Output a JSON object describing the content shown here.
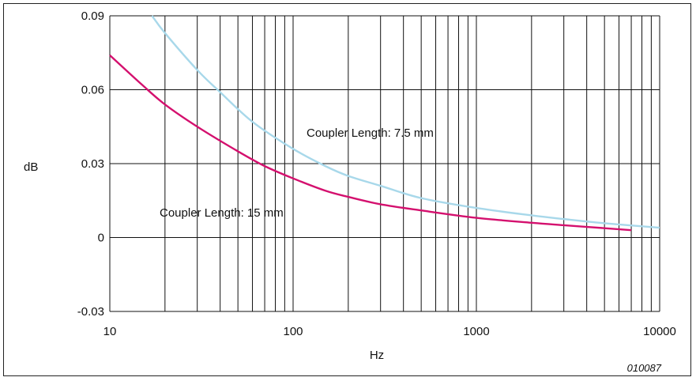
{
  "chart_data": {
    "type": "line",
    "title": "",
    "xlabel": "Hz",
    "ylabel": "dB",
    "xscale": "log",
    "xlim": [
      10,
      10000
    ],
    "ylim": [
      -0.03,
      0.09
    ],
    "xticks": [
      10,
      100,
      1000,
      10000
    ],
    "xtick_labels": [
      "10",
      "100",
      "1000",
      "10000"
    ],
    "yticks": [
      0.09,
      0.06,
      0.03,
      0,
      -0.03
    ],
    "ytick_labels": [
      "0.09",
      "0.06",
      "0.03",
      "0",
      "-0.03"
    ],
    "grid": true,
    "series": [
      {
        "name": "Coupler Length: 7.5 mm",
        "color": "#a8d8ea",
        "x": [
          17,
          20,
          30,
          40,
          60,
          100,
          150,
          200,
          300,
          500,
          1000,
          2000,
          3000,
          5000,
          10000
        ],
        "y": [
          0.09,
          0.083,
          0.068,
          0.059,
          0.047,
          0.036,
          0.029,
          0.025,
          0.021,
          0.016,
          0.012,
          0.009,
          0.0075,
          0.0058,
          0.004
        ]
      },
      {
        "name": "Coupler Length: 15 mm",
        "color": "#d4106e",
        "x": [
          10,
          15,
          20,
          30,
          50,
          70,
          100,
          150,
          200,
          300,
          500,
          1000,
          2000,
          3000,
          5000,
          7000
        ],
        "y": [
          0.074,
          0.062,
          0.054,
          0.045,
          0.035,
          0.029,
          0.024,
          0.019,
          0.0165,
          0.0135,
          0.011,
          0.008,
          0.006,
          0.005,
          0.0038,
          0.003
        ]
      }
    ],
    "annotations": [
      "Coupler Length: 7.5 mm",
      "Coupler Length: 15 mm"
    ],
    "figure_id": "010087"
  }
}
